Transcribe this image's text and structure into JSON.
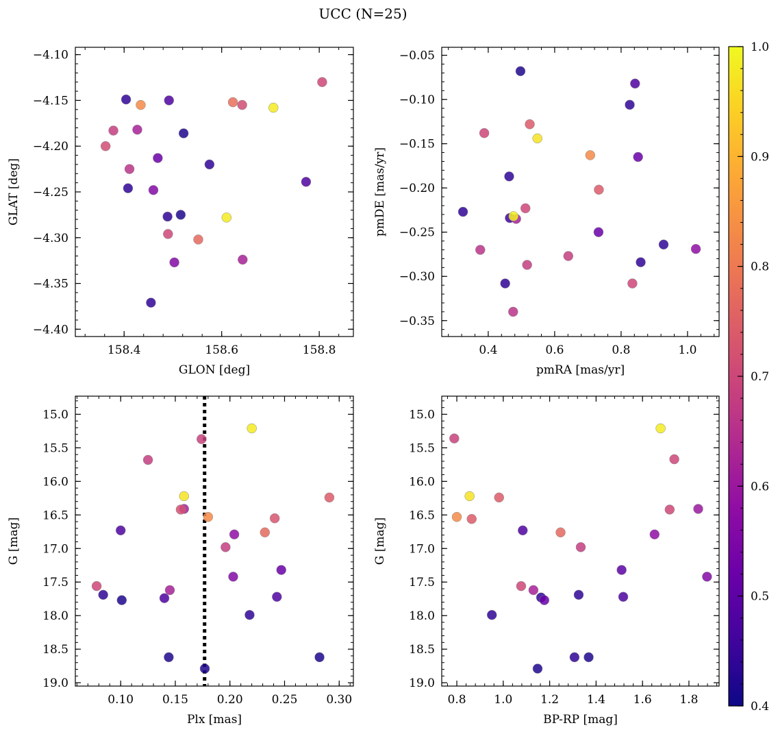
{
  "figure": {
    "title": "UCC (N=25)"
  },
  "chart_data": [
    {
      "type": "scatter",
      "title": "",
      "xlabel": "GLON [deg]",
      "ylabel": "GLAT [deg]",
      "xlim": [
        158.3,
        158.87
      ],
      "ylim": [
        -4.408,
        -4.092
      ],
      "y_inverted": false,
      "xticks": [
        158.4,
        158.6,
        158.8
      ],
      "xtick_labels": [
        "158.4",
        "158.6",
        "158.8"
      ],
      "yticks": [
        -4.4,
        -4.35,
        -4.3,
        -4.25,
        -4.2,
        -4.15,
        -4.1
      ],
      "ytick_labels": [
        "−4.40",
        "−4.35",
        "−4.30",
        "−4.25",
        "−4.20",
        "−4.15",
        "−4.10"
      ],
      "points": [
        {
          "x": 158.404,
          "y": -4.149,
          "c": 0.44
        },
        {
          "x": 158.378,
          "y": -4.183,
          "c": 0.68
        },
        {
          "x": 158.362,
          "y": -4.2,
          "c": 0.71
        },
        {
          "x": 158.427,
          "y": -4.182,
          "c": 0.62
        },
        {
          "x": 158.411,
          "y": -4.225,
          "c": 0.66
        },
        {
          "x": 158.408,
          "y": -4.246,
          "c": 0.44
        },
        {
          "x": 158.469,
          "y": -4.213,
          "c": 0.52
        },
        {
          "x": 158.434,
          "y": -4.155,
          "c": 0.83
        },
        {
          "x": 158.492,
          "y": -4.15,
          "c": 0.48
        },
        {
          "x": 158.522,
          "y": -4.186,
          "c": 0.42
        },
        {
          "x": 158.575,
          "y": -4.22,
          "c": 0.44
        },
        {
          "x": 158.46,
          "y": -4.248,
          "c": 0.56
        },
        {
          "x": 158.489,
          "y": -4.277,
          "c": 0.44
        },
        {
          "x": 158.516,
          "y": -4.275,
          "c": 0.42
        },
        {
          "x": 158.49,
          "y": -4.296,
          "c": 0.7
        },
        {
          "x": 158.552,
          "y": -4.302,
          "c": 0.77
        },
        {
          "x": 158.503,
          "y": -4.327,
          "c": 0.56
        },
        {
          "x": 158.455,
          "y": -4.371,
          "c": 0.44
        },
        {
          "x": 158.61,
          "y": -4.278,
          "c": 0.98
        },
        {
          "x": 158.623,
          "y": -4.152,
          "c": 0.78
        },
        {
          "x": 158.642,
          "y": -4.155,
          "c": 0.71
        },
        {
          "x": 158.706,
          "y": -4.158,
          "c": 0.98
        },
        {
          "x": 158.643,
          "y": -4.324,
          "c": 0.62
        },
        {
          "x": 158.773,
          "y": -4.239,
          "c": 0.48
        },
        {
          "x": 158.806,
          "y": -4.13,
          "c": 0.7
        }
      ]
    },
    {
      "type": "scatter",
      "title": "",
      "xlabel": "pmRA [mas/yr]",
      "ylabel": "pmDE [mas/yr]",
      "xlim": [
        0.26,
        1.095
      ],
      "ylim": [
        -0.368,
        -0.041
      ],
      "y_inverted": false,
      "xticks": [
        0.4,
        0.6,
        0.8,
        1.0
      ],
      "xtick_labels": [
        "0.4",
        "0.6",
        "0.8",
        "1.0"
      ],
      "yticks": [
        -0.35,
        -0.3,
        -0.25,
        -0.2,
        -0.15,
        -0.1,
        -0.05
      ],
      "ytick_labels": [
        "−0.35",
        "−0.30",
        "−0.25",
        "−0.20",
        "−0.15",
        "−0.10",
        "−0.05"
      ],
      "points": [
        {
          "x": 0.497,
          "y": -0.068,
          "c": 0.42
        },
        {
          "x": 0.842,
          "y": -0.082,
          "c": 0.48
        },
        {
          "x": 0.826,
          "y": -0.106,
          "c": 0.44
        },
        {
          "x": 0.388,
          "y": -0.138,
          "c": 0.7
        },
        {
          "x": 0.525,
          "y": -0.128,
          "c": 0.74
        },
        {
          "x": 0.548,
          "y": -0.144,
          "c": 0.97
        },
        {
          "x": 0.707,
          "y": -0.163,
          "c": 0.83
        },
        {
          "x": 0.851,
          "y": -0.165,
          "c": 0.52
        },
        {
          "x": 0.463,
          "y": -0.187,
          "c": 0.44
        },
        {
          "x": 0.733,
          "y": -0.202,
          "c": 0.74
        },
        {
          "x": 0.324,
          "y": -0.227,
          "c": 0.44
        },
        {
          "x": 0.512,
          "y": -0.223,
          "c": 0.7
        },
        {
          "x": 0.465,
          "y": -0.234,
          "c": 0.46
        },
        {
          "x": 0.484,
          "y": -0.235,
          "c": 0.62
        },
        {
          "x": 0.476,
          "y": -0.232,
          "c": 0.99
        },
        {
          "x": 0.732,
          "y": -0.25,
          "c": 0.52
        },
        {
          "x": 0.376,
          "y": -0.27,
          "c": 0.66
        },
        {
          "x": 0.641,
          "y": -0.277,
          "c": 0.68
        },
        {
          "x": 0.517,
          "y": -0.287,
          "c": 0.68
        },
        {
          "x": 0.928,
          "y": -0.264,
          "c": 0.44
        },
        {
          "x": 1.025,
          "y": -0.269,
          "c": 0.58
        },
        {
          "x": 0.859,
          "y": -0.284,
          "c": 0.44
        },
        {
          "x": 0.451,
          "y": -0.308,
          "c": 0.44
        },
        {
          "x": 0.834,
          "y": -0.308,
          "c": 0.7
        },
        {
          "x": 0.475,
          "y": -0.34,
          "c": 0.66
        }
      ]
    },
    {
      "type": "scatter",
      "title": "",
      "xlabel": "Plx [mas]",
      "ylabel": "G [mag]",
      "xlim": [
        0.0585,
        0.313
      ],
      "ylim": [
        14.73,
        19.05
      ],
      "y_inverted": true,
      "vline": {
        "x": 0.1768,
        "style": "dotted"
      },
      "xticks": [
        0.1,
        0.15,
        0.2,
        0.25,
        0.3
      ],
      "xtick_labels": [
        "0.10",
        "0.15",
        "0.20",
        "0.25",
        "0.30"
      ],
      "yticks": [
        15.0,
        15.5,
        16.0,
        16.5,
        17.0,
        17.5,
        18.0,
        18.5,
        19.0
      ],
      "ytick_labels": [
        "15.0",
        "15.5",
        "16.0",
        "16.5",
        "17.0",
        "17.5",
        "18.0",
        "18.5",
        "19.0"
      ],
      "points": [
        {
          "x": 0.22,
          "y": 15.21,
          "c": 0.98
        },
        {
          "x": 0.174,
          "y": 15.37,
          "c": 0.69
        },
        {
          "x": 0.125,
          "y": 15.68,
          "c": 0.68
        },
        {
          "x": 0.158,
          "y": 16.22,
          "c": 0.97
        },
        {
          "x": 0.291,
          "y": 16.24,
          "c": 0.74
        },
        {
          "x": 0.158,
          "y": 16.41,
          "c": 0.62
        },
        {
          "x": 0.155,
          "y": 16.42,
          "c": 0.72
        },
        {
          "x": 0.18,
          "y": 16.53,
          "c": 0.83
        },
        {
          "x": 0.241,
          "y": 16.55,
          "c": 0.73
        },
        {
          "x": 0.1,
          "y": 16.73,
          "c": 0.48
        },
        {
          "x": 0.232,
          "y": 16.76,
          "c": 0.77
        },
        {
          "x": 0.204,
          "y": 16.79,
          "c": 0.58
        },
        {
          "x": 0.196,
          "y": 16.98,
          "c": 0.68
        },
        {
          "x": 0.247,
          "y": 17.32,
          "c": 0.52
        },
        {
          "x": 0.203,
          "y": 17.42,
          "c": 0.56
        },
        {
          "x": 0.078,
          "y": 17.56,
          "c": 0.7
        },
        {
          "x": 0.145,
          "y": 17.62,
          "c": 0.62
        },
        {
          "x": 0.084,
          "y": 17.69,
          "c": 0.44
        },
        {
          "x": 0.101,
          "y": 17.77,
          "c": 0.42
        },
        {
          "x": 0.14,
          "y": 17.74,
          "c": 0.48
        },
        {
          "x": 0.243,
          "y": 17.72,
          "c": 0.48
        },
        {
          "x": 0.218,
          "y": 17.99,
          "c": 0.44
        },
        {
          "x": 0.144,
          "y": 18.62,
          "c": 0.42
        },
        {
          "x": 0.282,
          "y": 18.62,
          "c": 0.42
        },
        {
          "x": 0.177,
          "y": 18.79,
          "c": 0.42
        }
      ]
    },
    {
      "type": "scatter",
      "title": "",
      "xlabel": "BP-RP [mag]",
      "ylabel": "G [mag]",
      "xlim": [
        0.735,
        1.93
      ],
      "ylim": [
        14.73,
        19.05
      ],
      "y_inverted": true,
      "xticks": [
        0.8,
        1.0,
        1.2,
        1.4,
        1.6,
        1.8
      ],
      "xtick_labels": [
        "0.8",
        "1.0",
        "1.2",
        "1.4",
        "1.6",
        "1.8"
      ],
      "yticks": [
        15.0,
        15.5,
        16.0,
        16.5,
        17.0,
        17.5,
        18.0,
        18.5,
        19.0
      ],
      "ytick_labels": [
        "15.0",
        "15.5",
        "16.0",
        "16.5",
        "17.0",
        "17.5",
        "18.0",
        "18.5",
        "19.0"
      ],
      "points": [
        {
          "x": 0.789,
          "y": 15.36,
          "c": 0.69
        },
        {
          "x": 1.678,
          "y": 15.21,
          "c": 0.98
        },
        {
          "x": 1.737,
          "y": 15.67,
          "c": 0.7
        },
        {
          "x": 0.855,
          "y": 16.22,
          "c": 0.97
        },
        {
          "x": 0.982,
          "y": 16.24,
          "c": 0.74
        },
        {
          "x": 0.8,
          "y": 16.53,
          "c": 0.83
        },
        {
          "x": 0.864,
          "y": 16.56,
          "c": 0.74
        },
        {
          "x": 1.717,
          "y": 16.42,
          "c": 0.7
        },
        {
          "x": 1.84,
          "y": 16.41,
          "c": 0.6
        },
        {
          "x": 1.084,
          "y": 16.73,
          "c": 0.48
        },
        {
          "x": 1.247,
          "y": 16.76,
          "c": 0.77
        },
        {
          "x": 1.652,
          "y": 16.79,
          "c": 0.58
        },
        {
          "x": 1.334,
          "y": 16.98,
          "c": 0.68
        },
        {
          "x": 1.51,
          "y": 17.32,
          "c": 0.5
        },
        {
          "x": 1.878,
          "y": 17.42,
          "c": 0.56
        },
        {
          "x": 1.077,
          "y": 17.56,
          "c": 0.7
        },
        {
          "x": 1.13,
          "y": 17.62,
          "c": 0.62
        },
        {
          "x": 1.163,
          "y": 17.73,
          "c": 0.44
        },
        {
          "x": 1.177,
          "y": 17.77,
          "c": 0.52
        },
        {
          "x": 1.325,
          "y": 17.69,
          "c": 0.44
        },
        {
          "x": 1.517,
          "y": 17.72,
          "c": 0.48
        },
        {
          "x": 0.951,
          "y": 17.99,
          "c": 0.44
        },
        {
          "x": 1.307,
          "y": 18.62,
          "c": 0.44
        },
        {
          "x": 1.368,
          "y": 18.62,
          "c": 0.42
        },
        {
          "x": 1.148,
          "y": 18.79,
          "c": 0.42
        }
      ]
    }
  ],
  "colorbar": {
    "cmap": "plasma",
    "range": [
      0.4,
      1.0
    ],
    "ticks": [
      0.4,
      0.5,
      0.6,
      0.7,
      0.8,
      0.9,
      1.0
    ],
    "tick_labels": [
      "0.4",
      "0.5",
      "0.6",
      "0.7",
      "0.8",
      "0.9",
      "1.0"
    ]
  }
}
